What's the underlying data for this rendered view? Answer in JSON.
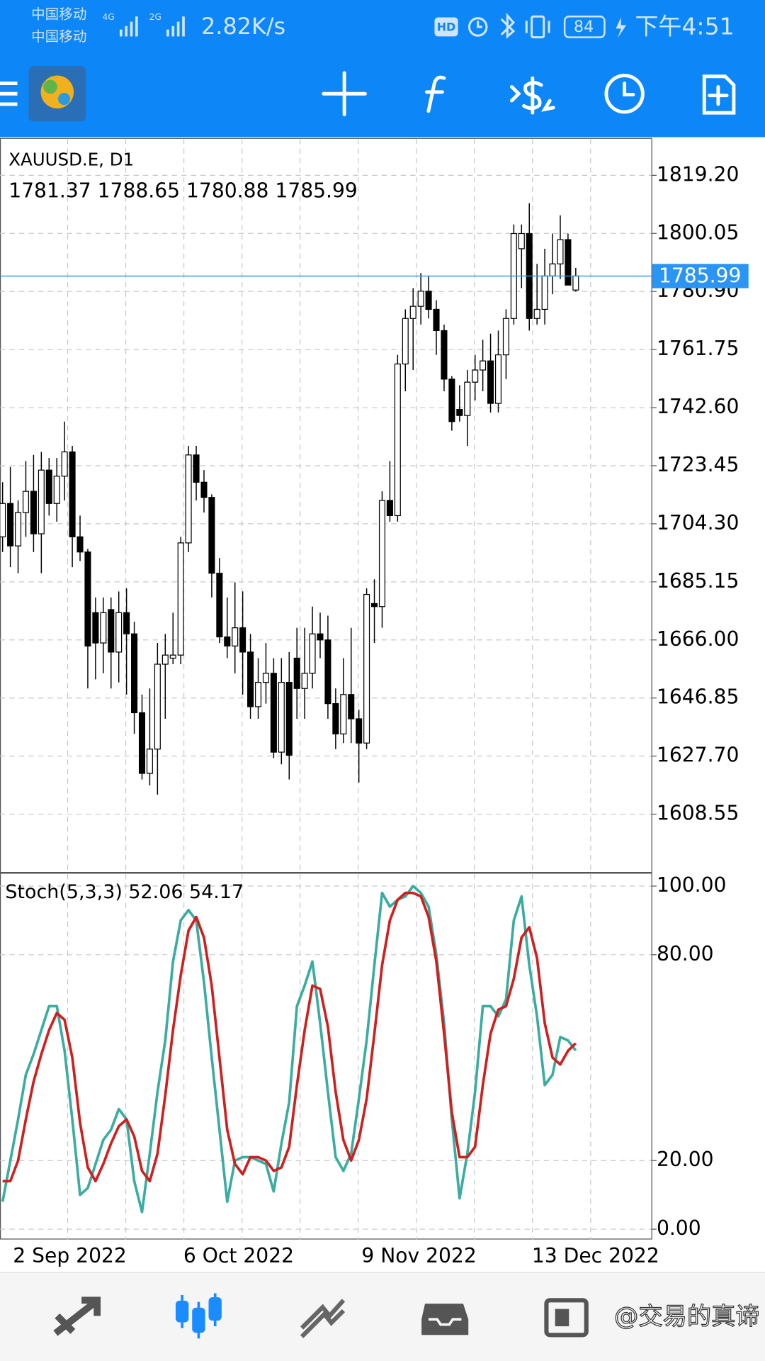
{
  "status_bar": {
    "carriers": [
      "中国移动",
      "中国移动"
    ],
    "networks": [
      "4G",
      "2G"
    ],
    "speed": "2.82K/s",
    "hd": "HD",
    "battery": 84,
    "time": "下午4:51"
  },
  "watermark": "@交易的真谛",
  "chart_data": [
    {
      "type": "candlestick",
      "title": "XAUUSD.E, D1",
      "categories": [
        null,
        "2 Sep 2022",
        null,
        null,
        null,
        null,
        null,
        null,
        null,
        null,
        null,
        null,
        null,
        null,
        null,
        null,
        null,
        null,
        null,
        null,
        null,
        null,
        null,
        "6 Oct 2022",
        null,
        null,
        null,
        null,
        null,
        null,
        null,
        null,
        null,
        null,
        null,
        null,
        null,
        null,
        null,
        null,
        null,
        null,
        null,
        null,
        null,
        null,
        "9 Nov 2022",
        null,
        null,
        null,
        null,
        null,
        null,
        null,
        null,
        null,
        null,
        null,
        null,
        null,
        null,
        null,
        null,
        null,
        null,
        null,
        null,
        null,
        "13 Dec 2022",
        null,
        null,
        null,
        null,
        null,
        null
      ],
      "open": [
        1700,
        1711,
        1697,
        1708,
        1715,
        1701,
        1722,
        1711,
        1720,
        1728,
        1700,
        1695,
        1675,
        1665,
        1676,
        1662,
        1675,
        1668,
        1642,
        1622,
        1630,
        1658,
        1660,
        1661,
        1698,
        1727,
        1718,
        1713,
        1688,
        1667,
        1664,
        1670,
        1662,
        1644,
        1652,
        1655,
        1629,
        1652,
        1660,
        1650,
        1655,
        1668,
        1666,
        1645,
        1635,
        1648,
        1640,
        1632,
        1678,
        1677,
        1712,
        1707,
        1757,
        1772,
        1776,
        1781,
        1775,
        1768,
        1752,
        1742,
        1740,
        1751,
        1755,
        1758,
        1744,
        1760,
        1772,
        1795,
        1800,
        1772,
        1775,
        1786,
        1790,
        1798,
        1781.37
      ],
      "high": [
        1718,
        1723,
        1712,
        1725,
        1727,
        1728,
        1726,
        1726,
        1738,
        1730,
        1707,
        1696,
        1680,
        1680,
        1680,
        1682,
        1683,
        1672,
        1648,
        1650,
        1665,
        1668,
        1675,
        1700,
        1730,
        1730,
        1722,
        1714,
        1693,
        1680,
        1685,
        1682,
        1668,
        1660,
        1665,
        1660,
        1660,
        1662,
        1670,
        1670,
        1677,
        1675,
        1674,
        1650,
        1660,
        1670,
        1643,
        1683,
        1686,
        1715,
        1725,
        1760,
        1775,
        1782,
        1787,
        1786,
        1778,
        1770,
        1753,
        1750,
        1755,
        1760,
        1765,
        1767,
        1768,
        1775,
        1803,
        1803,
        1810,
        1790,
        1795,
        1800,
        1806,
        1800,
        1788.65
      ],
      "low": [
        1695,
        1690,
        1688,
        1700,
        1695,
        1688,
        1707,
        1705,
        1712,
        1690,
        1692,
        1650,
        1653,
        1655,
        1650,
        1652,
        1648,
        1635,
        1620,
        1618,
        1615,
        1640,
        1658,
        1658,
        1695,
        1712,
        1708,
        1680,
        1665,
        1660,
        1655,
        1648,
        1640,
        1640,
        1645,
        1627,
        1625,
        1620,
        1640,
        1640,
        1650,
        1660,
        1640,
        1630,
        1632,
        1632,
        1619,
        1630,
        1665,
        1670,
        1705,
        1705,
        1748,
        1755,
        1770,
        1772,
        1760,
        1748,
        1735,
        1738,
        1730,
        1745,
        1748,
        1741,
        1741,
        1752,
        1770,
        1782,
        1768,
        1770,
        1770,
        1780,
        1785,
        1783,
        1780.88
      ],
      "close": [
        1711,
        1697,
        1708,
        1715,
        1701,
        1722,
        1711,
        1720,
        1728,
        1700,
        1695,
        1664,
        1665,
        1675,
        1662,
        1675,
        1668,
        1642,
        1622,
        1630,
        1658,
        1661,
        1661,
        1698,
        1727,
        1718,
        1713,
        1688,
        1667,
        1664,
        1670,
        1662,
        1644,
        1652,
        1655,
        1629,
        1652,
        1628,
        1650,
        1655,
        1668,
        1666,
        1645,
        1635,
        1648,
        1640,
        1632,
        1681,
        1677,
        1712,
        1707,
        1757,
        1772,
        1776,
        1781,
        1775,
        1768,
        1752,
        1738,
        1740,
        1751,
        1755,
        1758,
        1744,
        1760,
        1772,
        1800,
        1800,
        1772,
        1775,
        1786,
        1790,
        1798,
        1783,
        1785.99
      ],
      "ylim": [
        1589.66,
        1831.22
      ],
      "yticks": [
        {
          "value": 1819.2,
          "label": "1819.20"
        },
        {
          "value": 1800.05,
          "label": "1800.05"
        },
        {
          "value": 1780.9,
          "label": "1780.90"
        },
        {
          "value": 1761.75,
          "label": "1761.75"
        },
        {
          "value": 1742.6,
          "label": "1742.60"
        },
        {
          "value": 1723.45,
          "label": "1723.45"
        },
        {
          "value": 1704.3,
          "label": "1704.30"
        },
        {
          "value": 1685.15,
          "label": "1685.15"
        },
        {
          "value": 1666,
          "label": "1666.00"
        },
        {
          "value": 1646.85,
          "label": "1646.85"
        },
        {
          "value": 1627.7,
          "label": "1627.70"
        },
        {
          "value": 1608.55,
          "label": "1608.55"
        }
      ],
      "grid": true,
      "up_color": "#ffffff",
      "down_color": "#000000",
      "price_line_color": "#2b95f5"
    },
    {
      "type": "line",
      "title": "Stoch(5,3,3)",
      "series": [
        {
          "color": "#3aada0",
          "values": [
            8,
            20,
            32,
            45,
            51,
            58,
            65,
            65,
            52,
            32,
            10,
            12,
            19,
            26,
            29,
            35,
            32,
            14,
            5,
            22,
            40,
            55,
            78,
            90,
            93,
            90,
            72,
            50,
            29,
            8,
            20,
            21,
            21,
            20,
            19,
            11,
            25,
            37,
            65,
            71,
            78,
            60,
            40,
            21,
            17,
            22,
            38,
            55,
            77,
            98,
            94,
            96,
            97,
            100,
            98,
            94,
            80,
            60,
            32,
            9,
            22,
            40,
            65,
            65,
            62,
            67,
            90,
            97,
            77,
            62,
            42,
            45,
            56,
            55,
            52.06
          ]
        },
        {
          "color": "#d01f1f",
          "values": [
            14,
            14,
            20,
            32,
            43,
            51,
            58,
            63,
            61,
            50,
            31,
            18,
            14,
            19,
            25,
            30,
            32,
            27,
            17,
            14,
            22,
            39,
            58,
            74,
            87,
            91,
            85,
            71,
            50,
            29,
            19,
            16,
            21,
            21,
            20,
            17,
            18,
            24,
            42,
            58,
            71,
            70,
            59,
            40,
            26,
            20,
            26,
            38,
            57,
            77,
            90,
            96,
            98,
            98,
            97,
            91,
            78,
            57,
            34,
            21,
            21,
            24,
            42,
            57,
            64,
            65,
            73,
            85,
            88,
            79,
            60,
            50,
            48,
            52,
            54.17
          ]
        }
      ],
      "ylim": [
        -3,
        103.5
      ],
      "yticks": [
        {
          "value": 100,
          "label": "100.00"
        },
        {
          "value": 80,
          "label": "80.00"
        },
        {
          "value": 20,
          "label": "20.00"
        },
        {
          "value": 0,
          "label": "0.00"
        }
      ],
      "grid": true
    }
  ]
}
